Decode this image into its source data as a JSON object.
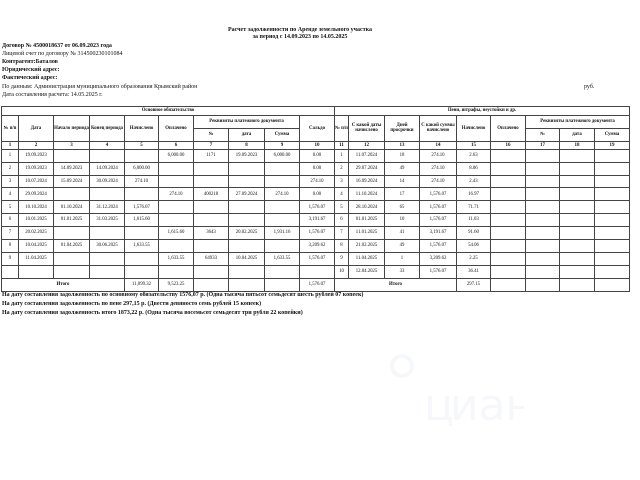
{
  "title": {
    "line1": "Расчет задолженности по Аренде земельного участка",
    "line2": "за период с 14.09.2023 по 14.05.2025"
  },
  "meta": {
    "contract": "Договор № 4500018637 от 06.09.2023 года",
    "account": "Лицевой счет по договору № 314500230101084",
    "counterparty": "Контрагент:Баталов",
    "legal_address": "Юридический адрес:",
    "actual_address": "Фактический адрес:",
    "data_source": "По данным: Администрация муниципального образования Крымский район",
    "calc_date": "Дата составления расчета: 14.05.2025 г.",
    "currency": "руб."
  },
  "main_table": {
    "section_title": "Основное обязательство",
    "headers": {
      "num": "№ п/п",
      "date": "Дата",
      "period_start": "Начало периода",
      "period_end": "Конец периода",
      "accrued": "Начислено",
      "paid": "Оплачено",
      "payment_doc": "Реквизиты платежного документа",
      "doc_num": "№",
      "doc_date": "дата",
      "doc_sum": "Сумма",
      "saldo": "Сальдо"
    },
    "col_numbers": [
      "1",
      "2",
      "3",
      "4",
      "5",
      "6",
      "7",
      "8",
      "9",
      "10"
    ],
    "rows": [
      [
        "1",
        "19.09.2023",
        "",
        "",
        "",
        "6,000.00",
        "1171",
        "19.09.2023",
        "6,000.00",
        "0.00"
      ],
      [
        "2",
        "19.09.2023",
        "14.09.2023",
        "14.09.2024",
        "6,000.00",
        "",
        "",
        "",
        "",
        "0.00"
      ],
      [
        "3",
        "10.07.2024",
        "15.09.2024",
        "30.09.2024",
        "274.10",
        "",
        "",
        "",
        "",
        "274.10"
      ],
      [
        "4",
        "29.09.2024",
        "",
        "",
        "",
        "274.10",
        "400218",
        "27.09.2024",
        "274.10",
        "0.00"
      ],
      [
        "5",
        "10.10.2024",
        "01.10.2024",
        "31.12.2024",
        "1,576.07",
        "",
        "",
        "",
        "",
        "1,576.07"
      ],
      [
        "6",
        "10.01.2025",
        "01.01.2025",
        "31.03.2025",
        "1,615.60",
        "",
        "",
        "",
        "",
        "3,191.67"
      ],
      [
        "7",
        "20.02.2025",
        "",
        "",
        "",
        "1,615.60",
        "3643",
        "20.02.2025",
        "1,931.16",
        "1,576.07"
      ],
      [
        "8",
        "10.04.2025",
        "01.04.2025",
        "30.06.2025",
        "1,633.55",
        "",
        "",
        "",
        "",
        "3,209.62"
      ],
      [
        "9",
        "11.04.2025",
        "",
        "",
        "",
        "1,633.55",
        "64933",
        "10.04.2025",
        "1,633.55",
        "1,576.07"
      ],
      [
        "",
        "",
        "",
        "",
        "",
        "",
        "",
        "",
        "",
        ""
      ]
    ],
    "total_label": "Итого",
    "total_accrued": "11,099.32",
    "total_paid": "9,523.25",
    "total_saldo": "1,576.07"
  },
  "penalty_table": {
    "section_title": "Пени, штрафы, неустойки и др.",
    "headers": {
      "num": "№ п/п",
      "from_date": "С какой даты начислено",
      "days_overdue": "Дней просрочки",
      "from_sum": "С какой суммы начислено",
      "accrued": "Начислено",
      "paid": "Оплачено",
      "payment_doc": "Реквизиты платежного документа",
      "doc_num": "№",
      "doc_date": "дата",
      "doc_sum": "Сумма"
    },
    "col_numbers": [
      "11",
      "12",
      "13",
      "14",
      "15",
      "16",
      "17",
      "18",
      "19"
    ],
    "rows": [
      [
        "1",
        "11.07.2024",
        "18",
        "274.10",
        "2.63",
        "",
        "",
        "",
        ""
      ],
      [
        "2",
        "29.07.2024",
        "49",
        "274.10",
        "8.06",
        "",
        "",
        "",
        ""
      ],
      [
        "3",
        "16.09.2024",
        "14",
        "274.10",
        "2.43",
        "",
        "",
        "",
        ""
      ],
      [
        "4",
        "11.10.2024",
        "17",
        "1,576.07",
        "16.97",
        "",
        "",
        "",
        ""
      ],
      [
        "5",
        "28.10.2024",
        "65",
        "1,576.07",
        "71.71",
        "",
        "",
        "",
        ""
      ],
      [
        "6",
        "01.01.2025",
        "10",
        "1,576.07",
        "11.03",
        "",
        "",
        "",
        ""
      ],
      [
        "7",
        "11.01.2025",
        "41",
        "3,191.67",
        "91.60",
        "",
        "",
        "",
        ""
      ],
      [
        "8",
        "21.02.2025",
        "49",
        "1,576.07",
        "54.06",
        "",
        "",
        "",
        ""
      ],
      [
        "9",
        "11.04.2025",
        "1",
        "3,209.62",
        "2.25",
        "",
        "",
        "",
        ""
      ],
      [
        "10",
        "12.04.2025",
        "33",
        "1,576.07",
        "36.41",
        "",
        "",
        "",
        ""
      ]
    ],
    "total_label": "Итого",
    "total_accrued": "297.15"
  },
  "footer": {
    "line1": "На дату составления задолженность по основному обязательству 1576,07 р. (Одна тысяча пятьсот семьдесят шесть рублей 07 копеек)",
    "line2": "На дату составления задолженность по пене 297,15 р. (Двести девяносто семь рублей 15 копеек)",
    "line3": "На дату составления задолженность итого 1873,22 р. (Одна тысяча восемьсот семьдесят три рубля 22 копейки)"
  },
  "watermark": "циан"
}
